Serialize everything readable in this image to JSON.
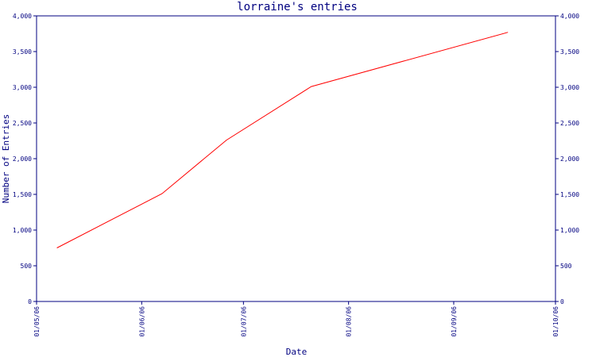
{
  "chart_data": {
    "type": "line",
    "title": "lorraine's entries",
    "xlabel": "Date",
    "ylabel": "Number of Entries",
    "x_ticks": [
      "01/05/06",
      "01/06/06",
      "01/07/06",
      "01/08/06",
      "01/09/06",
      "01/10/06"
    ],
    "xlim": [
      "2006-05-01",
      "2006-10-01"
    ],
    "y_ticks": [
      "0",
      "500",
      "1,000",
      "1,500",
      "2,000",
      "2,500",
      "3,000",
      "3,500",
      "4,000"
    ],
    "ylim": [
      0,
      4000
    ],
    "y_tick_values": [
      0,
      500,
      1000,
      1500,
      2000,
      2500,
      3000,
      3500,
      4000
    ],
    "grid": false,
    "secondary_y_axis": true,
    "series": [
      {
        "color": "#ff0000",
        "x": [
          "2006-05-07",
          "2006-06-07",
          "2006-06-26",
          "2006-07-21",
          "2006-09-17"
        ],
        "y": [
          750,
          1510,
          2260,
          3010,
          3770
        ]
      }
    ]
  }
}
